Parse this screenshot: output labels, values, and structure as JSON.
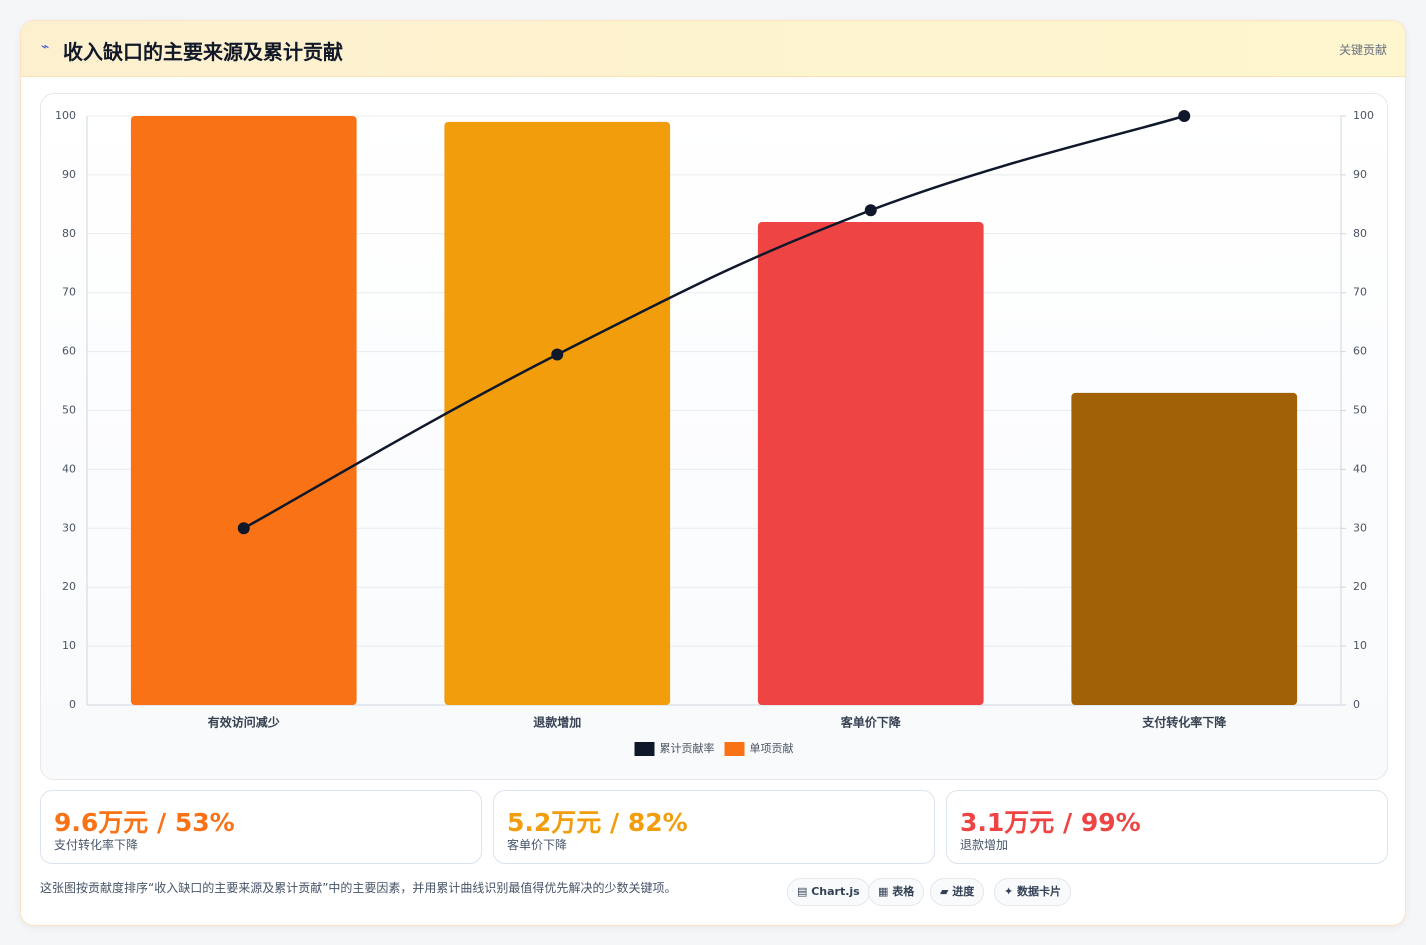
{
  "header": {
    "icon": "⌁",
    "title": "收入缺口的主要来源及累计贡献",
    "badge": "关键贡献"
  },
  "chart_data": {
    "type": "bar",
    "categories": [
      "有效访问减少",
      "退款增加",
      "客单价下降",
      "支付转化率下降"
    ],
    "series": [
      {
        "name": "累计贡献率",
        "type": "line",
        "color": "#0f172a",
        "values": [
          30,
          59.5,
          84,
          100
        ],
        "axis": "y2"
      },
      {
        "name": "单项贡献",
        "type": "bar",
        "color": "#f97316",
        "colors": [
          "#f97316",
          "#f29e0c",
          "#ef4444",
          "#a16207"
        ],
        "values": [
          100,
          99,
          82,
          53
        ]
      }
    ],
    "ylim": [
      0,
      100
    ],
    "yticks": [
      0,
      10,
      20,
      30,
      40,
      50,
      60,
      70,
      80,
      90,
      100
    ],
    "y2lim": [
      0,
      100
    ],
    "y2ticks": [
      0,
      10,
      20,
      30,
      40,
      50,
      60,
      70,
      80,
      90,
      100
    ],
    "grid": true,
    "legend": "bottom"
  },
  "stats": [
    {
      "value": "9.6万元 / 53%",
      "label": "支付转化率下降",
      "color": "#f97316"
    },
    {
      "value": "5.2万元 / 82%",
      "label": "客单价下降",
      "color": "#f29e0c"
    },
    {
      "value": "3.1万元 / 99%",
      "label": "退款增加",
      "color": "#ef4444"
    }
  ],
  "footer": {
    "text": "这张图按贡献度排序“收入缺口的主要来源及累计贡献”中的主要因素，并用累计曲线识别最值得优先解决的少数关键项。",
    "chips": [
      "▤ Chart.js",
      "▦ 表格",
      "▰ 进度",
      "✦ 数据卡片"
    ]
  }
}
